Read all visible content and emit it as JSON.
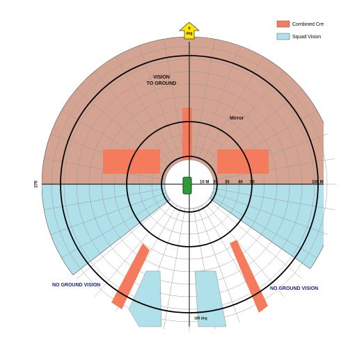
{
  "top_marker": {
    "angle": "0",
    "unit": "deg"
  },
  "legend": [
    "Combined Cre",
    "Squad Vision"
  ],
  "labels": {
    "vision_to_ground": [
      "VISION",
      "TO GROUND"
    ],
    "mirror": "Mirror",
    "ranges": [
      "10 M",
      "20",
      "30",
      "40",
      "50"
    ],
    "outer_range": "100 M",
    "left": "270",
    "bottom": "180 deg",
    "no_ground_vision": [
      "NO GROUND VISION",
      "NO GROUND VISION"
    ]
  }
}
